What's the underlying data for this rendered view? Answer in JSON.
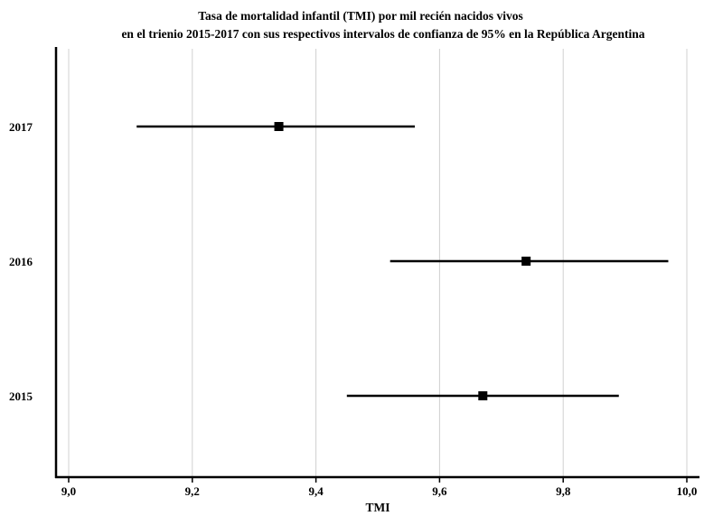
{
  "chart_data": {
    "type": "forest",
    "title_lines": [
      "Tasa de mortalidad infantil (TMI) por mil recién nacidos vivos",
      "en el trienio 2015-2017 con sus respectivos intervalos de confianza de 95% en la República Argentina"
    ],
    "xlabel": "TMI",
    "ylabel": "",
    "xlim": [
      9.0,
      10.0
    ],
    "x_ticks": [
      9.0,
      9.2,
      9.4,
      9.6,
      9.8,
      10.0
    ],
    "x_tick_labels": [
      "9,0",
      "9,2",
      "9,4",
      "9,6",
      "9,8",
      "10,0"
    ],
    "grid": "vertical",
    "categories": [
      "2017",
      "2016",
      "2015"
    ],
    "points": [
      {
        "label": "2017",
        "estimate": 9.34,
        "lower": 9.11,
        "upper": 9.56
      },
      {
        "label": "2016",
        "estimate": 9.74,
        "lower": 9.52,
        "upper": 9.97
      },
      {
        "label": "2015",
        "estimate": 9.67,
        "lower": 9.45,
        "upper": 9.89
      }
    ],
    "colors": {
      "marks": "#000000",
      "grid": "#d0d0d0"
    }
  }
}
